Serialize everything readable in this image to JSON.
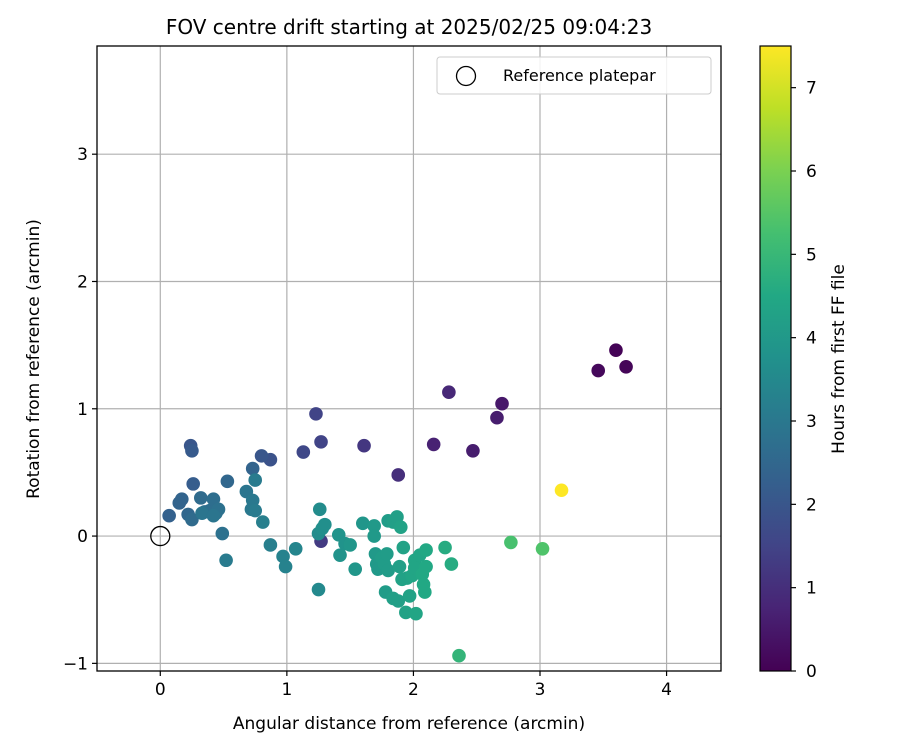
{
  "chart_data": {
    "type": "scatter",
    "title": "FOV centre drift starting at 2025/02/25 09:04:23",
    "xlabel": "Angular distance from reference (arcmin)",
    "ylabel": "Rotation from reference (arcmin)",
    "xlim": [
      -0.5,
      4.43
    ],
    "ylim": [
      -1.06,
      3.85
    ],
    "xticks": [
      "0",
      "1",
      "2",
      "3",
      "4"
    ],
    "yticks": [
      "−1",
      "0",
      "1",
      "2",
      "3"
    ],
    "grid": true,
    "legend": {
      "placement": "top-right",
      "entries": [
        "Reference platepar"
      ]
    },
    "reference_point": {
      "x": 0,
      "y": 0,
      "marker": "open-circle"
    },
    "colorbar": {
      "label": "Hours from first FF file",
      "range": [
        0,
        7.5
      ],
      "ticks": [
        "0",
        "1",
        "2",
        "3",
        "4",
        "5",
        "6",
        "7"
      ],
      "colormap": "viridis"
    },
    "points": [
      {
        "x": 3.6,
        "y": 1.46,
        "c": 0.05
      },
      {
        "x": 3.68,
        "y": 1.33,
        "c": 0.1
      },
      {
        "x": 3.46,
        "y": 1.3,
        "c": 0.15
      },
      {
        "x": 2.7,
        "y": 1.04,
        "c": 0.5
      },
      {
        "x": 2.66,
        "y": 0.93,
        "c": 0.6
      },
      {
        "x": 2.47,
        "y": 0.67,
        "c": 0.6
      },
      {
        "x": 2.16,
        "y": 0.72,
        "c": 0.7
      },
      {
        "x": 2.28,
        "y": 1.13,
        "c": 0.85
      },
      {
        "x": 1.88,
        "y": 0.48,
        "c": 1.0
      },
      {
        "x": 1.61,
        "y": 0.71,
        "c": 1.2
      },
      {
        "x": 1.27,
        "y": -0.04,
        "c": 1.3
      },
      {
        "x": 1.27,
        "y": 0.74,
        "c": 1.5
      },
      {
        "x": 1.23,
        "y": 0.96,
        "c": 1.5
      },
      {
        "x": 1.13,
        "y": 0.66,
        "c": 1.6
      },
      {
        "x": 0.87,
        "y": 0.6,
        "c": 1.9
      },
      {
        "x": 0.8,
        "y": 0.63,
        "c": 2.0
      },
      {
        "x": 0.24,
        "y": 0.71,
        "c": 2.0
      },
      {
        "x": 0.25,
        "y": 0.67,
        "c": 2.1
      },
      {
        "x": 0.53,
        "y": 0.43,
        "c": 2.5
      },
      {
        "x": 0.73,
        "y": 0.53,
        "c": 2.4
      },
      {
        "x": 0.26,
        "y": 0.41,
        "c": 2.2
      },
      {
        "x": 0.07,
        "y": 0.16,
        "c": 2.3
      },
      {
        "x": 0.17,
        "y": 0.29,
        "c": 2.4
      },
      {
        "x": 0.15,
        "y": 0.26,
        "c": 2.4
      },
      {
        "x": 0.22,
        "y": 0.17,
        "c": 2.5
      },
      {
        "x": 0.25,
        "y": 0.13,
        "c": 2.6
      },
      {
        "x": 0.32,
        "y": 0.3,
        "c": 2.6
      },
      {
        "x": 0.35,
        "y": 0.19,
        "c": 2.7
      },
      {
        "x": 0.39,
        "y": 0.2,
        "c": 2.7
      },
      {
        "x": 0.42,
        "y": 0.29,
        "c": 2.7
      },
      {
        "x": 0.44,
        "y": 0.18,
        "c": 2.8
      },
      {
        "x": 0.46,
        "y": 0.21,
        "c": 2.8
      },
      {
        "x": 0.49,
        "y": 0.02,
        "c": 2.8
      },
      {
        "x": 0.33,
        "y": 0.18,
        "c": 2.9
      },
      {
        "x": 0.42,
        "y": 0.16,
        "c": 2.9
      },
      {
        "x": 0.68,
        "y": 0.35,
        "c": 2.9
      },
      {
        "x": 0.73,
        "y": 0.28,
        "c": 3.0
      },
      {
        "x": 0.72,
        "y": 0.21,
        "c": 3.0
      },
      {
        "x": 0.75,
        "y": 0.44,
        "c": 3.1
      },
      {
        "x": 0.75,
        "y": 0.2,
        "c": 3.1
      },
      {
        "x": 0.81,
        "y": 0.11,
        "c": 3.2
      },
      {
        "x": 0.52,
        "y": -0.19,
        "c": 3.1
      },
      {
        "x": 0.87,
        "y": -0.07,
        "c": 3.2
      },
      {
        "x": 0.97,
        "y": -0.16,
        "c": 3.3
      },
      {
        "x": 0.99,
        "y": -0.24,
        "c": 3.3
      },
      {
        "x": 1.07,
        "y": -0.1,
        "c": 3.4
      },
      {
        "x": 1.25,
        "y": -0.42,
        "c": 3.5
      },
      {
        "x": 1.25,
        "y": 0.02,
        "c": 3.6
      },
      {
        "x": 1.26,
        "y": 0.21,
        "c": 3.6
      },
      {
        "x": 1.28,
        "y": 0.06,
        "c": 3.7
      },
      {
        "x": 1.3,
        "y": 0.09,
        "c": 3.7
      },
      {
        "x": 1.41,
        "y": 0.01,
        "c": 3.8
      },
      {
        "x": 1.42,
        "y": -0.15,
        "c": 3.8
      },
      {
        "x": 1.46,
        "y": -0.06,
        "c": 3.8
      },
      {
        "x": 1.5,
        "y": -0.07,
        "c": 3.9
      },
      {
        "x": 1.54,
        "y": -0.26,
        "c": 3.9
      },
      {
        "x": 1.6,
        "y": 0.1,
        "c": 3.9
      },
      {
        "x": 1.69,
        "y": 0.08,
        "c": 4.0
      },
      {
        "x": 1.69,
        "y": 0.0,
        "c": 4.0
      },
      {
        "x": 1.7,
        "y": -0.14,
        "c": 4.0
      },
      {
        "x": 1.71,
        "y": -0.22,
        "c": 4.0
      },
      {
        "x": 1.72,
        "y": -0.26,
        "c": 4.0
      },
      {
        "x": 1.75,
        "y": -0.17,
        "c": 4.1
      },
      {
        "x": 1.77,
        "y": -0.22,
        "c": 4.1
      },
      {
        "x": 1.78,
        "y": -0.44,
        "c": 4.1
      },
      {
        "x": 1.79,
        "y": -0.14,
        "c": 4.1
      },
      {
        "x": 1.8,
        "y": -0.27,
        "c": 4.1
      },
      {
        "x": 1.8,
        "y": 0.12,
        "c": 4.1
      },
      {
        "x": 1.84,
        "y": 0.11,
        "c": 4.2
      },
      {
        "x": 1.84,
        "y": -0.49,
        "c": 4.2
      },
      {
        "x": 1.87,
        "y": 0.15,
        "c": 4.2
      },
      {
        "x": 1.88,
        "y": -0.51,
        "c": 4.2
      },
      {
        "x": 1.89,
        "y": -0.24,
        "c": 4.2
      },
      {
        "x": 1.9,
        "y": 0.07,
        "c": 4.3
      },
      {
        "x": 1.91,
        "y": -0.34,
        "c": 4.3
      },
      {
        "x": 1.92,
        "y": -0.09,
        "c": 4.3
      },
      {
        "x": 1.94,
        "y": -0.6,
        "c": 4.3
      },
      {
        "x": 1.95,
        "y": -0.33,
        "c": 4.3
      },
      {
        "x": 1.97,
        "y": -0.47,
        "c": 4.3
      },
      {
        "x": 1.99,
        "y": -0.31,
        "c": 4.4
      },
      {
        "x": 2.01,
        "y": -0.19,
        "c": 4.4
      },
      {
        "x": 2.01,
        "y": -0.25,
        "c": 4.4
      },
      {
        "x": 2.02,
        "y": -0.61,
        "c": 4.4
      },
      {
        "x": 2.05,
        "y": -0.15,
        "c": 4.4
      },
      {
        "x": 2.07,
        "y": -0.3,
        "c": 4.5
      },
      {
        "x": 2.08,
        "y": -0.38,
        "c": 4.5
      },
      {
        "x": 2.09,
        "y": -0.44,
        "c": 4.5
      },
      {
        "x": 2.1,
        "y": -0.24,
        "c": 4.5
      },
      {
        "x": 2.1,
        "y": -0.11,
        "c": 4.5
      },
      {
        "x": 2.25,
        "y": -0.09,
        "c": 4.6
      },
      {
        "x": 2.3,
        "y": -0.22,
        "c": 4.6
      },
      {
        "x": 2.36,
        "y": -0.94,
        "c": 4.9
      },
      {
        "x": 2.77,
        "y": -0.05,
        "c": 5.3
      },
      {
        "x": 3.02,
        "y": -0.1,
        "c": 5.4
      },
      {
        "x": 3.17,
        "y": 0.36,
        "c": 7.5
      }
    ]
  }
}
